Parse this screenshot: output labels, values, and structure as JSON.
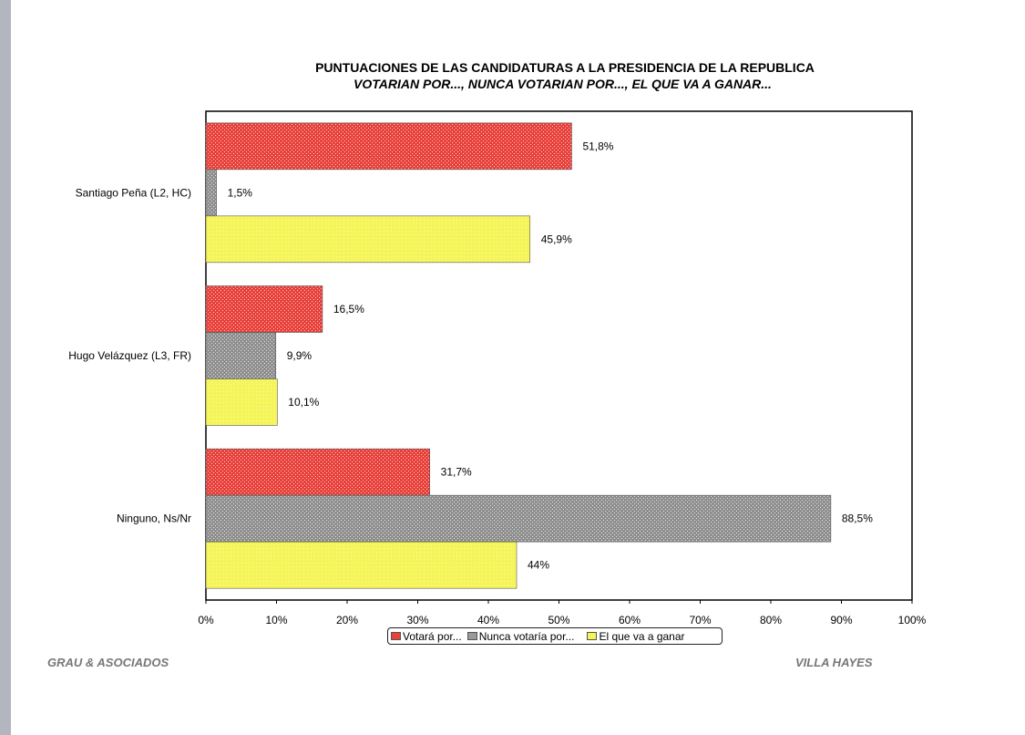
{
  "chart_data": {
    "type": "bar",
    "orientation": "horizontal",
    "title": "PUNTUACIONES DE LAS CANDIDATURAS A LA PRESIDENCIA DE LA REPUBLICA",
    "subtitle": "VOTARIAN POR..., NUNCA VOTARIAN POR..., EL QUE VA A GANAR...",
    "categories": [
      "Santiago Peña (L2, HC)",
      "Hugo Velázquez (L3, FR)",
      "Ninguno, Ns/Nr"
    ],
    "series": [
      {
        "name": "Votará por...",
        "color": "#e8403a",
        "values": [
          51.8,
          16.5,
          31.7
        ],
        "labels": [
          "51,8%",
          "16,5%",
          "31,7%"
        ]
      },
      {
        "name": "Nunca votaría por...",
        "color": "#9a9a9a",
        "values": [
          1.5,
          9.9,
          88.5
        ],
        "labels": [
          "1,5%",
          "9,9%",
          "88,5%"
        ]
      },
      {
        "name": "El que va a ganar",
        "color": "#f5f55a",
        "values": [
          45.9,
          10.1,
          44
        ],
        "labels": [
          "45,9%",
          "10,1%",
          "44%"
        ]
      }
    ],
    "xlim": [
      0,
      100
    ],
    "xticks": [
      "0%",
      "10%",
      "20%",
      "30%",
      "40%",
      "50%",
      "60%",
      "70%",
      "80%",
      "90%",
      "100%"
    ],
    "grid": false,
    "legend_position": "bottom"
  },
  "footer": {
    "left": "GRAU & ASOCIADOS",
    "right": "VILLA HAYES"
  }
}
